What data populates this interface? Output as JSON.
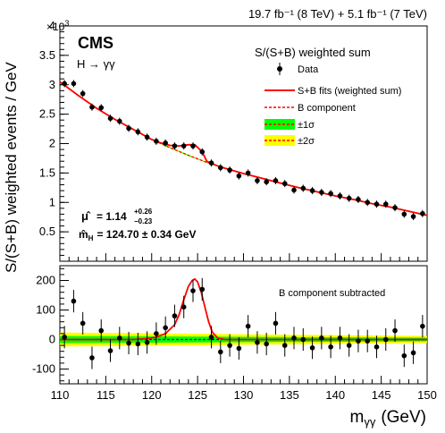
{
  "header": {
    "lumi_text": "19.7 fb⁻¹ (8 TeV) + 5.1 fb⁻¹ (7 TeV)"
  },
  "labels": {
    "experiment": "CMS",
    "channel": "H → γγ",
    "upper_title": "S/(S+B) weighted sum",
    "lower_title": "B component subtracted",
    "ylabel": "S/(S+B) weighted events / GeV",
    "xlabel": "m",
    "xlabel_sub": "γγ",
    "xlabel_unit": "(GeV)",
    "exponent": "×10",
    "exponent_power": "3",
    "mu_symbol": "μ̂",
    "mu_value": "= 1.14",
    "mu_err_up": "+0.26",
    "mu_err_down": "−0.23",
    "mass_symbol": "m̂",
    "mass_sub": "H",
    "mass_value": "= 124.70 ± 0.34 GeV"
  },
  "legend": [
    {
      "label": "Data",
      "kind": "marker"
    },
    {
      "label": "S+B fits (weighted sum)",
      "kind": "line",
      "color": "#ff0000"
    },
    {
      "label": "B component",
      "kind": "dashed",
      "color": "#ff0000"
    },
    {
      "label": "±1σ",
      "kind": "band",
      "color": "#00ff00"
    },
    {
      "label": "±2σ",
      "kind": "band",
      "color": "#ffff00"
    }
  ],
  "colors": {
    "fit": "#ff0000",
    "band1": "#00ff00",
    "band2": "#ffff00",
    "bonly": "#0000ff"
  },
  "chart_data": [
    {
      "type": "scatter",
      "xlim": [
        110,
        150
      ],
      "ylim": [
        0,
        4
      ],
      "yticks": [
        "0.5",
        "1",
        "1.5",
        "2",
        "2.5",
        "3",
        "3.5",
        "4"
      ],
      "yscale_label": "×10³",
      "series": [
        {
          "name": "Data",
          "x": [
            110.5,
            111.5,
            112.5,
            113.5,
            114.5,
            115.5,
            116.5,
            117.5,
            118.5,
            119.5,
            120.5,
            121.5,
            122.5,
            123.5,
            124.5,
            125.5,
            126.5,
            127.5,
            128.5,
            129.5,
            130.5,
            131.5,
            132.5,
            133.5,
            134.5,
            135.5,
            136.5,
            137.5,
            138.5,
            139.5,
            140.5,
            141.5,
            142.5,
            143.5,
            144.5,
            145.5,
            146.5,
            147.5,
            148.5,
            149.5
          ],
          "y": [
            3.02,
            3.02,
            2.85,
            2.62,
            2.61,
            2.43,
            2.38,
            2.26,
            2.2,
            2.11,
            2.04,
            2.01,
            1.96,
            1.96,
            1.96,
            1.86,
            1.67,
            1.59,
            1.55,
            1.45,
            1.5,
            1.37,
            1.35,
            1.37,
            1.32,
            1.21,
            1.24,
            1.2,
            1.17,
            1.15,
            1.11,
            1.07,
            1.05,
            1.0,
            0.97,
            0.97,
            0.91,
            0.8,
            0.76,
            0.81
          ]
        },
        {
          "name": "S+B fits (weighted sum)",
          "x": [
            110,
            112,
            114,
            116,
            118,
            120,
            121,
            122,
            123,
            124,
            124.7,
            125.5,
            126,
            127,
            128,
            130,
            132,
            134,
            136,
            138,
            140,
            142,
            144,
            146,
            148,
            150
          ],
          "y": [
            3.05,
            2.82,
            2.6,
            2.41,
            2.24,
            2.07,
            2.01,
            1.97,
            1.96,
            1.98,
            1.98,
            1.86,
            1.7,
            1.63,
            1.58,
            1.49,
            1.41,
            1.33,
            1.25,
            1.18,
            1.11,
            1.05,
            0.98,
            0.92,
            0.85,
            0.78
          ]
        },
        {
          "name": "B component",
          "x": [
            110,
            112,
            114,
            116,
            118,
            120,
            122,
            124,
            126,
            128,
            130,
            132,
            134,
            136,
            138,
            140,
            142,
            144,
            146,
            148,
            150
          ],
          "y": [
            3.05,
            2.82,
            2.6,
            2.41,
            2.24,
            2.07,
            1.93,
            1.8,
            1.68,
            1.58,
            1.49,
            1.41,
            1.33,
            1.25,
            1.18,
            1.11,
            1.05,
            0.98,
            0.92,
            0.85,
            0.78
          ]
        }
      ]
    },
    {
      "type": "scatter",
      "xlim": [
        110,
        150
      ],
      "ylim": [
        -150,
        250
      ],
      "xticks": [
        110,
        115,
        120,
        125,
        130,
        135,
        140,
        145,
        150
      ],
      "yticks": [
        -100,
        0,
        100,
        200
      ],
      "xlabel": "m_γγ (GeV)",
      "series": [
        {
          "name": "Data",
          "x": [
            110.5,
            111.5,
            112.5,
            113.5,
            114.5,
            115.5,
            116.5,
            117.5,
            118.5,
            119.5,
            120.5,
            121.5,
            122.5,
            123.5,
            124.5,
            125.5,
            126.5,
            127.5,
            128.5,
            129.5,
            130.5,
            131.5,
            132.5,
            133.5,
            134.5,
            135.5,
            136.5,
            137.5,
            138.5,
            139.5,
            140.5,
            141.5,
            142.5,
            143.5,
            144.5,
            145.5,
            146.5,
            147.5,
            148.5,
            149.5
          ],
          "y": [
            8,
            130,
            55,
            -62,
            30,
            -38,
            5,
            -12,
            -15,
            -10,
            20,
            40,
            80,
            110,
            165,
            170,
            8,
            -42,
            -20,
            -30,
            45,
            -10,
            -15,
            55,
            -20,
            5,
            0,
            -28,
            5,
            -25,
            5,
            -20,
            -5,
            -5,
            -25,
            0,
            30,
            -55,
            -45,
            45
          ]
        },
        {
          "name": "S+B fits (weighted sum)",
          "x": [
            110,
            118,
            119.5,
            120.5,
            121.5,
            122.5,
            123,
            123.5,
            124,
            124.4,
            124.7,
            125,
            125.4,
            125.8,
            126.2,
            126.6,
            127.2,
            128,
            150
          ],
          "y": [
            0,
            0,
            3,
            8,
            20,
            50,
            85,
            135,
            180,
            200,
            205,
            195,
            160,
            110,
            60,
            25,
            5,
            0,
            0
          ]
        }
      ],
      "bands": {
        "sigma1": [
          [
            110,
            12
          ],
          [
            130,
            9
          ],
          [
            150,
            6
          ]
        ],
        "sigma2": [
          [
            110,
            24
          ],
          [
            130,
            18
          ],
          [
            150,
            12
          ]
        ]
      }
    }
  ]
}
